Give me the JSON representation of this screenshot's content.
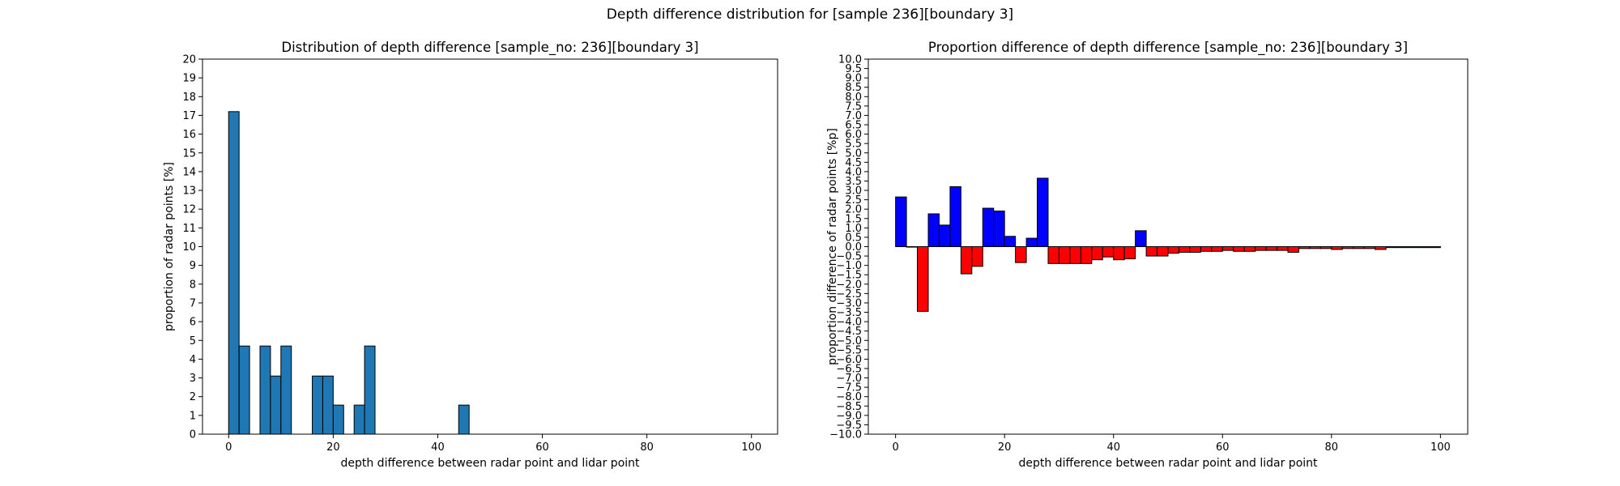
{
  "figure": {
    "title": "Depth difference distribution for [sample 236][boundary 3]"
  },
  "chart_data": [
    {
      "type": "bar",
      "title": "Distribution of depth difference [sample_no: 236][boundary 3]",
      "xlabel": "depth difference between radar point and lidar point",
      "ylabel": "proportion of radar points [%]",
      "xlim": [
        -5,
        105
      ],
      "ylim": [
        0,
        20
      ],
      "x_ticks": [
        0,
        20,
        40,
        60,
        80,
        100
      ],
      "y_ticks": [
        0,
        1,
        2,
        3,
        4,
        5,
        6,
        7,
        8,
        9,
        10,
        11,
        12,
        13,
        14,
        15,
        16,
        17,
        18,
        19,
        20
      ],
      "bin_width": 2,
      "color": "#1f77b4",
      "edge_color": "#000000",
      "bins": [
        {
          "x": 0,
          "value": 17.2
        },
        {
          "x": 2,
          "value": 4.7
        },
        {
          "x": 6,
          "value": 4.7
        },
        {
          "x": 8,
          "value": 3.1
        },
        {
          "x": 10,
          "value": 4.7
        },
        {
          "x": 16,
          "value": 3.1
        },
        {
          "x": 18,
          "value": 3.1
        },
        {
          "x": 20,
          "value": 1.55
        },
        {
          "x": 24,
          "value": 1.55
        },
        {
          "x": 26,
          "value": 4.7
        },
        {
          "x": 44,
          "value": 1.55
        }
      ]
    },
    {
      "type": "bar",
      "title": "Proportion difference of depth difference [sample_no: 236][boundary 3]",
      "xlabel": "depth difference between radar point and lidar point",
      "ylabel": "proportion difference of radar points [%p]",
      "xlim": [
        -5,
        105
      ],
      "ylim": [
        -10,
        10
      ],
      "x_ticks": [
        0,
        20,
        40,
        60,
        80,
        100
      ],
      "y_ticks": [
        -10.0,
        -9.5,
        -9.0,
        -8.5,
        -8.0,
        -7.5,
        -7.0,
        -6.5,
        -6.0,
        -5.5,
        -5.0,
        -4.5,
        -4.0,
        -3.5,
        -3.0,
        -2.5,
        -2.0,
        -1.5,
        -1.0,
        -0.5,
        0.0,
        0.5,
        1.0,
        1.5,
        2.0,
        2.5,
        3.0,
        3.5,
        4.0,
        4.5,
        5.0,
        5.5,
        6.0,
        6.5,
        7.0,
        7.5,
        8.0,
        8.5,
        9.0,
        9.5,
        10.0
      ],
      "bin_width": 2,
      "positive_color": "#0000ff",
      "negative_color": "#ff0000",
      "edge_color": "#000000",
      "bins": [
        {
          "x": 0,
          "value": 2.65
        },
        {
          "x": 2,
          "value": 0.0
        },
        {
          "x": 4,
          "value": -3.45
        },
        {
          "x": 6,
          "value": 1.75
        },
        {
          "x": 8,
          "value": 1.15
        },
        {
          "x": 10,
          "value": 3.2
        },
        {
          "x": 12,
          "value": -1.45
        },
        {
          "x": 14,
          "value": -1.05
        },
        {
          "x": 16,
          "value": 2.05
        },
        {
          "x": 18,
          "value": 1.9
        },
        {
          "x": 20,
          "value": 0.55
        },
        {
          "x": 22,
          "value": -0.85
        },
        {
          "x": 24,
          "value": 0.45
        },
        {
          "x": 26,
          "value": 3.65
        },
        {
          "x": 28,
          "value": -0.9
        },
        {
          "x": 30,
          "value": -0.9
        },
        {
          "x": 32,
          "value": -0.9
        },
        {
          "x": 34,
          "value": -0.9
        },
        {
          "x": 36,
          "value": -0.7
        },
        {
          "x": 38,
          "value": -0.55
        },
        {
          "x": 40,
          "value": -0.7
        },
        {
          "x": 42,
          "value": -0.65
        },
        {
          "x": 44,
          "value": 0.85
        },
        {
          "x": 46,
          "value": -0.5
        },
        {
          "x": 48,
          "value": -0.5
        },
        {
          "x": 50,
          "value": -0.35
        },
        {
          "x": 52,
          "value": -0.3
        },
        {
          "x": 54,
          "value": -0.3
        },
        {
          "x": 56,
          "value": -0.25
        },
        {
          "x": 58,
          "value": -0.25
        },
        {
          "x": 60,
          "value": -0.2
        },
        {
          "x": 62,
          "value": -0.25
        },
        {
          "x": 64,
          "value": -0.25
        },
        {
          "x": 66,
          "value": -0.2
        },
        {
          "x": 68,
          "value": -0.2
        },
        {
          "x": 70,
          "value": -0.2
        },
        {
          "x": 72,
          "value": -0.3
        },
        {
          "x": 74,
          "value": -0.1
        },
        {
          "x": 76,
          "value": -0.1
        },
        {
          "x": 78,
          "value": -0.1
        },
        {
          "x": 80,
          "value": -0.15
        },
        {
          "x": 82,
          "value": -0.1
        },
        {
          "x": 84,
          "value": -0.1
        },
        {
          "x": 86,
          "value": -0.1
        },
        {
          "x": 88,
          "value": -0.15
        },
        {
          "x": 90,
          "value": -0.05
        },
        {
          "x": 92,
          "value": -0.05
        },
        {
          "x": 94,
          "value": -0.05
        },
        {
          "x": 96,
          "value": -0.05
        },
        {
          "x": 98,
          "value": -0.05
        }
      ]
    }
  ]
}
